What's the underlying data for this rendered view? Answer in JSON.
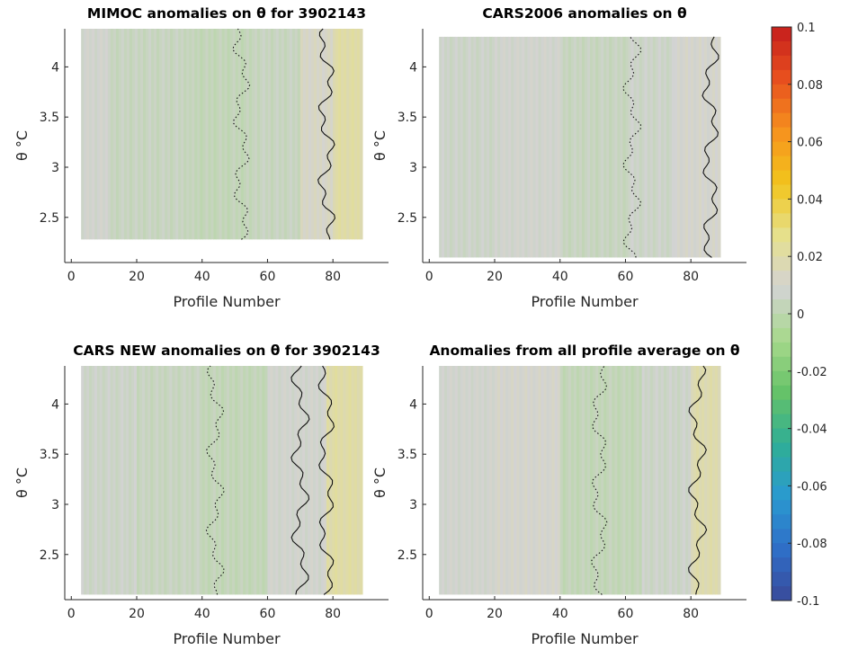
{
  "chart_data": [
    {
      "type": "heatmap",
      "title": "MIMOC anomalies on θ  for 3902143",
      "xlabel": "Profile Number",
      "ylabel": "θ °C",
      "xlim": [
        -2,
        97
      ],
      "ylim": [
        2.05,
        4.38
      ],
      "xticks": [
        0,
        20,
        40,
        60,
        80
      ],
      "yticks": [
        2.5,
        3,
        3.5,
        4
      ],
      "data_x_range": [
        3,
        89
      ],
      "data_theta_range": [
        2.28,
        4.38
      ],
      "zero_contour_positions": [
        52,
        78
      ],
      "anomaly_bands": [
        {
          "from": 3,
          "to": 12,
          "value": 0.008
        },
        {
          "from": 12,
          "to": 36,
          "value": 0.004
        },
        {
          "from": 36,
          "to": 56,
          "value": 0.002
        },
        {
          "from": 56,
          "to": 70,
          "value": 0.004
        },
        {
          "from": 70,
          "to": 80,
          "value": 0.012
        },
        {
          "from": 80,
          "to": 89,
          "value": 0.02
        }
      ]
    },
    {
      "type": "heatmap",
      "title": "CARS2006 anomalies on θ",
      "xlabel": "Profile Number",
      "ylabel": "θ °C",
      "xlim": [
        -2,
        97
      ],
      "ylim": [
        2.05,
        4.38
      ],
      "xticks": [
        0,
        20,
        40,
        60,
        80
      ],
      "yticks": [
        2.5,
        3,
        3.5,
        4
      ],
      "data_x_range": [
        3,
        89
      ],
      "data_theta_range": [
        2.1,
        4.3
      ],
      "zero_contour_positions": [
        62,
        86
      ],
      "anomaly_bands": [
        {
          "from": 3,
          "to": 20,
          "value": 0.006
        },
        {
          "from": 20,
          "to": 40,
          "value": 0.008
        },
        {
          "from": 40,
          "to": 60,
          "value": 0.004
        },
        {
          "from": 60,
          "to": 75,
          "value": 0.006
        },
        {
          "from": 75,
          "to": 89,
          "value": 0.01
        }
      ]
    },
    {
      "type": "heatmap",
      "title": "CARS NEW anomalies on θ for 3902143",
      "xlabel": "Profile Number",
      "ylabel": "θ °C",
      "xlim": [
        -2,
        97
      ],
      "ylim": [
        2.05,
        4.38
      ],
      "xticks": [
        0,
        20,
        40,
        60,
        80
      ],
      "yticks": [
        2.5,
        3,
        3.5,
        4
      ],
      "data_x_range": [
        3,
        89
      ],
      "data_theta_range": [
        2.1,
        4.38
      ],
      "zero_contour_positions": [
        44,
        70,
        78
      ],
      "anomaly_bands": [
        {
          "from": 3,
          "to": 20,
          "value": 0.006
        },
        {
          "from": 20,
          "to": 40,
          "value": 0.004
        },
        {
          "from": 40,
          "to": 60,
          "value": 0.002
        },
        {
          "from": 60,
          "to": 78,
          "value": 0.008
        },
        {
          "from": 78,
          "to": 89,
          "value": 0.02
        }
      ]
    },
    {
      "type": "heatmap",
      "title": "Anomalies from all profile average on θ",
      "xlabel": "Profile Number",
      "ylabel": "θ °C",
      "xlim": [
        -2,
        97
      ],
      "ylim": [
        2.05,
        4.38
      ],
      "xticks": [
        0,
        20,
        40,
        60,
        80
      ],
      "yticks": [
        2.5,
        3,
        3.5,
        4
      ],
      "data_x_range": [
        3,
        89
      ],
      "data_theta_range": [
        2.1,
        4.38
      ],
      "zero_contour_positions": [
        52,
        82
      ],
      "anomaly_bands": [
        {
          "from": 3,
          "to": 20,
          "value": 0.008
        },
        {
          "from": 20,
          "to": 40,
          "value": 0.01
        },
        {
          "from": 40,
          "to": 65,
          "value": 0.002
        },
        {
          "from": 65,
          "to": 80,
          "value": 0.006
        },
        {
          "from": 80,
          "to": 89,
          "value": 0.018
        }
      ]
    }
  ],
  "colorbar": {
    "min": -0.1,
    "max": 0.1,
    "ticks": [
      "0.1",
      "0.08",
      "0.06",
      "0.04",
      "0.02",
      "0",
      "-0.02",
      "-0.04",
      "-0.06",
      "-0.08",
      "-0.1"
    ],
    "tick_values": [
      0.1,
      0.08,
      0.06,
      0.04,
      0.02,
      0,
      -0.02,
      -0.04,
      -0.06,
      -0.08,
      -0.1
    ],
    "colors": [
      "#3a4a9a",
      "#2f6fc8",
      "#2a9ad0",
      "#2fae95",
      "#66c268",
      "#a7d98c",
      "#d3d3d3",
      "#e6e08c",
      "#f2c51c",
      "#f6921e",
      "#e8501e",
      "#c51d1d"
    ]
  },
  "zero_contour_label": "0"
}
